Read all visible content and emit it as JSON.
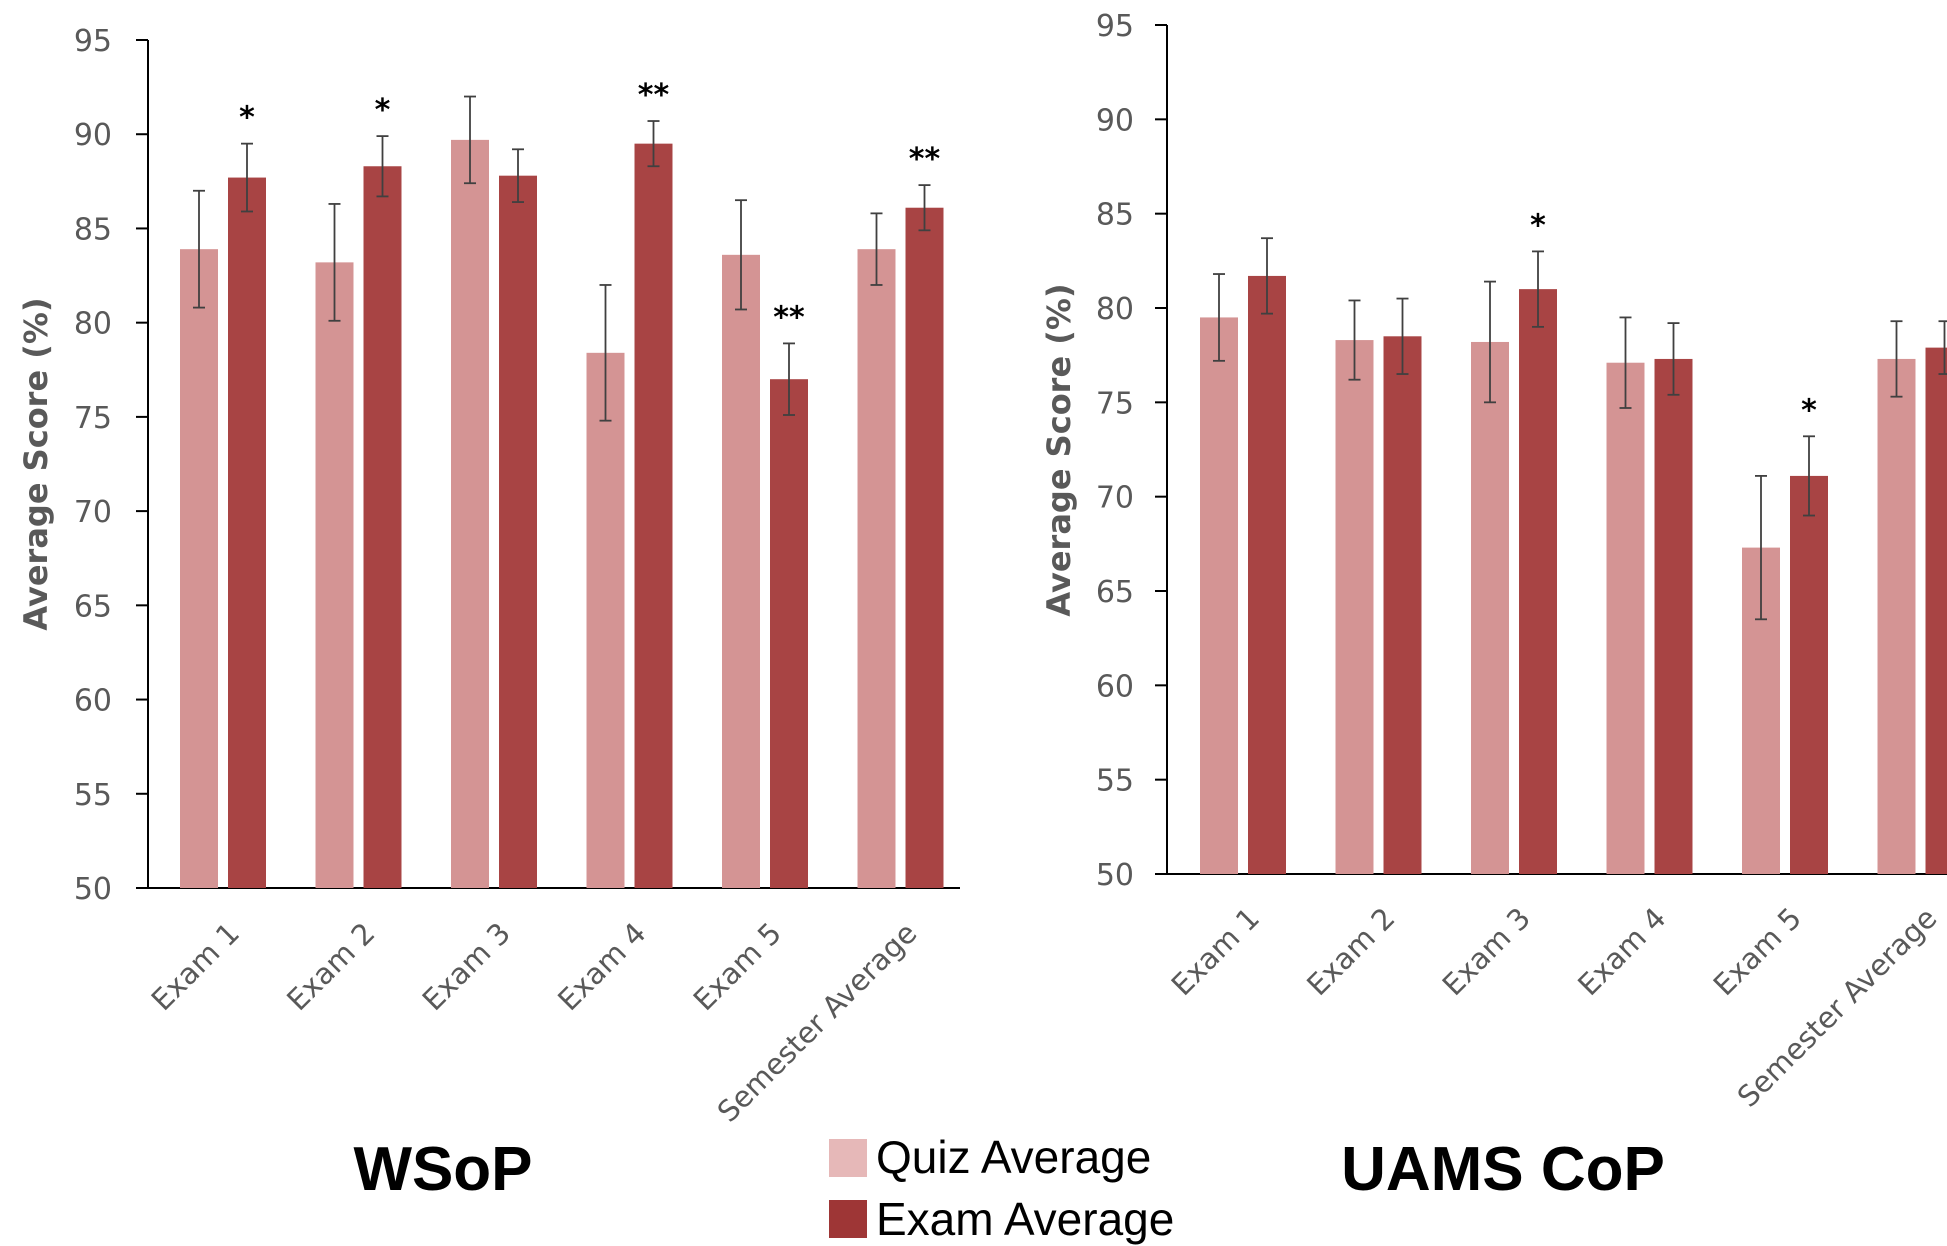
{
  "colors": {
    "quiz": "#d49494",
    "exam": "#a84444",
    "legend_quiz": "#e6b8b8",
    "legend_exam": "#9e3636",
    "axis": "#000000",
    "error_bar": "#404040",
    "tick_text": "#595959"
  },
  "legend": {
    "quiz_label": "Quiz Average",
    "exam_label": "Exam Average"
  },
  "chart_data": [
    {
      "type": "bar",
      "title": "WSoP",
      "ylabel": "Average Score (%)",
      "xlabel": "",
      "ylim": [
        50,
        95
      ],
      "yticks": [
        50,
        55,
        60,
        65,
        70,
        75,
        80,
        85,
        90,
        95
      ],
      "categories": [
        "Exam 1",
        "Exam 2",
        "Exam 3",
        "Exam 4",
        "Exam 5",
        "Semester Average"
      ],
      "series": [
        {
          "name": "Quiz Average",
          "values": [
            83.9,
            83.2,
            89.7,
            78.4,
            83.6,
            83.9
          ],
          "error": [
            3.1,
            3.1,
            2.3,
            3.6,
            2.9,
            1.9
          ]
        },
        {
          "name": "Exam Average",
          "values": [
            87.7,
            88.3,
            87.8,
            89.5,
            77.0,
            86.1
          ],
          "error": [
            1.8,
            1.6,
            1.4,
            1.2,
            1.9,
            1.2
          ]
        }
      ],
      "significance": [
        {
          "category": "Exam 1",
          "series": "Exam Average",
          "label": "*"
        },
        {
          "category": "Exam 2",
          "series": "Exam Average",
          "label": "*"
        },
        {
          "category": "Exam 4",
          "series": "Exam Average",
          "label": "**"
        },
        {
          "category": "Exam 5",
          "series": "Exam Average",
          "label": "**"
        },
        {
          "category": "Semester Average",
          "series": "Exam Average",
          "label": "**"
        }
      ],
      "grid": false,
      "legend_position": "bottom"
    },
    {
      "type": "bar",
      "title": "UAMS CoP",
      "ylabel": "Average Score (%)",
      "xlabel": "",
      "ylim": [
        50,
        95
      ],
      "yticks": [
        50,
        55,
        60,
        65,
        70,
        75,
        80,
        85,
        90,
        95
      ],
      "categories": [
        "Exam 1",
        "Exam 2",
        "Exam 3",
        "Exam 4",
        "Exam 5",
        "Semester Average"
      ],
      "series": [
        {
          "name": "Quiz Average",
          "values": [
            79.5,
            78.3,
            78.2,
            77.1,
            67.3,
            77.3
          ],
          "error": [
            2.3,
            2.1,
            3.2,
            2.4,
            3.8,
            2.0
          ]
        },
        {
          "name": "Exam Average",
          "values": [
            81.7,
            78.5,
            81.0,
            77.3,
            71.1,
            77.9
          ],
          "error": [
            2.0,
            2.0,
            2.0,
            1.9,
            2.1,
            1.4
          ]
        }
      ],
      "significance": [
        {
          "category": "Exam 3",
          "series": "Exam Average",
          "label": "*"
        },
        {
          "category": "Exam 5",
          "series": "Exam Average",
          "label": "*"
        }
      ],
      "grid": false,
      "legend_position": "bottom"
    }
  ]
}
